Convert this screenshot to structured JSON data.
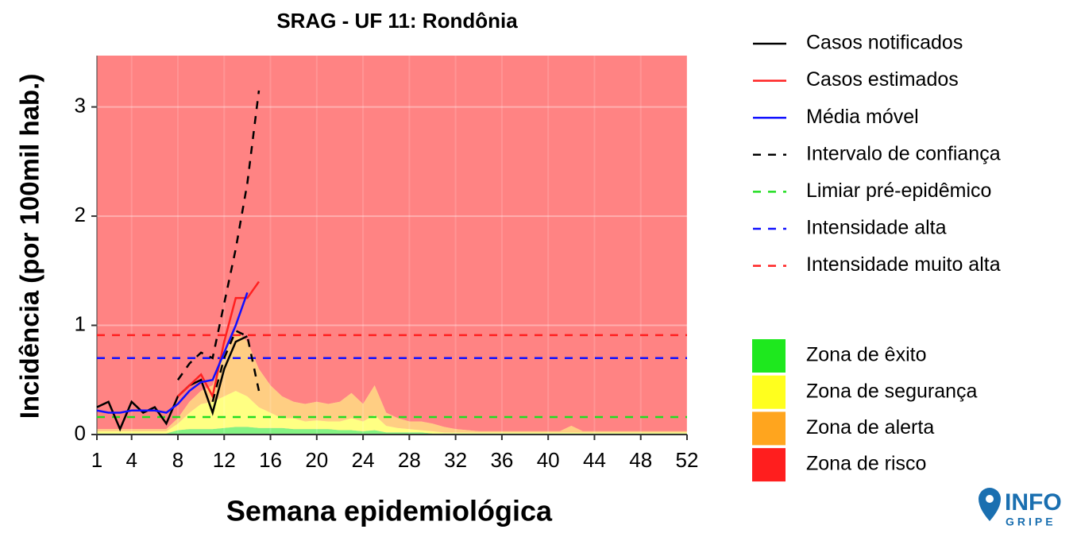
{
  "chart_data": {
    "type": "line",
    "title": "SRAG - UF 11: Rondônia",
    "xlabel": "Semana epidemiológica",
    "ylabel": "Incidência (por 100mil hab.)",
    "xlim": [
      1,
      52
    ],
    "xticks": [
      1,
      4,
      8,
      12,
      16,
      20,
      24,
      28,
      32,
      36,
      40,
      44,
      48,
      52
    ],
    "ylim": [
      0,
      3.47
    ],
    "yticks": [
      0,
      1,
      2,
      3
    ],
    "grid": true,
    "zones": {
      "x": [
        1,
        2,
        3,
        4,
        5,
        6,
        7,
        8,
        9,
        10,
        11,
        12,
        13,
        14,
        15,
        16,
        17,
        18,
        19,
        20,
        21,
        22,
        23,
        24,
        25,
        26,
        27,
        28,
        29,
        30,
        31,
        32,
        33,
        34,
        35,
        36,
        37,
        38,
        39,
        40,
        41,
        42,
        43,
        44,
        45,
        46,
        47,
        48,
        49,
        50,
        51,
        52
      ],
      "series": [
        {
          "name": "Zona de êxito",
          "color": "#1EE81E",
          "values": [
            0.01,
            0.01,
            0.01,
            0.01,
            0.01,
            0.01,
            0.01,
            0.04,
            0.05,
            0.05,
            0.05,
            0.06,
            0.07,
            0.07,
            0.06,
            0.06,
            0.06,
            0.05,
            0.05,
            0.05,
            0.05,
            0.04,
            0.04,
            0.03,
            0.04,
            0.02,
            0.02,
            0.02,
            0.02,
            0.01,
            0.01,
            0.01,
            0.01,
            0.01,
            0.01,
            0.01,
            0.01,
            0.01,
            0.01,
            0.01,
            0.01,
            0.01,
            0.01,
            0.01,
            0.01,
            0.01,
            0.01,
            0.01,
            0.01,
            0.01,
            0.01,
            0.01
          ]
        },
        {
          "name": "Zona de segurança",
          "color": "#FFFF1E",
          "values": [
            0.02,
            0.02,
            0.02,
            0.02,
            0.02,
            0.02,
            0.02,
            0.06,
            0.15,
            0.23,
            0.25,
            0.29,
            0.33,
            0.28,
            0.19,
            0.14,
            0.09,
            0.1,
            0.07,
            0.08,
            0.07,
            0.08,
            0.11,
            0.09,
            0.14,
            0.06,
            0.04,
            0.03,
            0.02,
            0.02,
            0.01,
            0.01,
            0.01,
            0.01,
            0.01,
            0.01,
            0.01,
            0.01,
            0.01,
            0.01,
            0.01,
            0.01,
            0.01,
            0.01,
            0.01,
            0.01,
            0.01,
            0.01,
            0.01,
            0.01,
            0.01,
            0.01
          ]
        },
        {
          "name": "Zona de alerta",
          "color": "#FFA51E",
          "values": [
            0.02,
            0.02,
            0.02,
            0.02,
            0.02,
            0.02,
            0.02,
            0.05,
            0.1,
            0.12,
            0.15,
            0.4,
            0.55,
            0.5,
            0.35,
            0.25,
            0.2,
            0.15,
            0.16,
            0.17,
            0.16,
            0.18,
            0.23,
            0.16,
            0.27,
            0.12,
            0.09,
            0.07,
            0.08,
            0.07,
            0.05,
            0.03,
            0.02,
            0.01,
            0.01,
            0.01,
            0.01,
            0.01,
            0.01,
            0.01,
            0.01,
            0.06,
            0.01,
            0.01,
            0.01,
            0.01,
            0.01,
            0.01,
            0.01,
            0.01,
            0.01,
            0.01
          ]
        },
        {
          "name": "Zona de risco",
          "color": "#FF1E1E"
        }
      ]
    },
    "series": [
      {
        "name": "Casos notificados",
        "color": "#000000",
        "x": [
          1,
          2,
          3,
          4,
          5,
          6,
          7,
          8,
          9,
          10,
          11,
          12,
          13,
          14
        ],
        "values": [
          0.25,
          0.3,
          0.05,
          0.3,
          0.2,
          0.25,
          0.1,
          0.35,
          0.45,
          0.5,
          0.2,
          0.6,
          0.85,
          0.9
        ]
      },
      {
        "name": "Casos estimados",
        "color": "#FF2020",
        "x": [
          8,
          9,
          10,
          11,
          12,
          13,
          14,
          15
        ],
        "values": [
          0.35,
          0.45,
          0.55,
          0.35,
          0.85,
          1.25,
          1.25,
          1.4
        ]
      },
      {
        "name": "Média móvel",
        "color": "#1010FF",
        "x": [
          1,
          2,
          3,
          4,
          5,
          6,
          7,
          8,
          9,
          10,
          11,
          12,
          13,
          14
        ],
        "values": [
          0.22,
          0.2,
          0.2,
          0.22,
          0.22,
          0.22,
          0.2,
          0.28,
          0.4,
          0.48,
          0.5,
          0.75,
          1.0,
          1.3
        ]
      },
      {
        "name": "Intervalo de confiança",
        "color": "#000000",
        "dash": true,
        "lines": [
          {
            "x": [
              8,
              9,
              10,
              11,
              12,
              13,
              14,
              15
            ],
            "values": [
              0.5,
              0.65,
              0.75,
              0.7,
              1.2,
              1.7,
              2.3,
              3.15
            ]
          },
          {
            "x": [
              11,
              12,
              13,
              14,
              15
            ],
            "values": [
              0.3,
              0.7,
              0.95,
              0.9,
              0.4
            ]
          }
        ]
      },
      {
        "name": "Limiar pré-epidêmico",
        "color": "#22DD22",
        "dash": true,
        "value": 0.16
      },
      {
        "name": "Intensidade alta",
        "color": "#1010FF",
        "dash": true,
        "value": 0.7
      },
      {
        "name": "Intensidade muito alta",
        "color": "#FF2020",
        "dash": true,
        "value": 0.91
      }
    ]
  },
  "logo": {
    "line1": "INFO",
    "line2": "GRIPE"
  }
}
